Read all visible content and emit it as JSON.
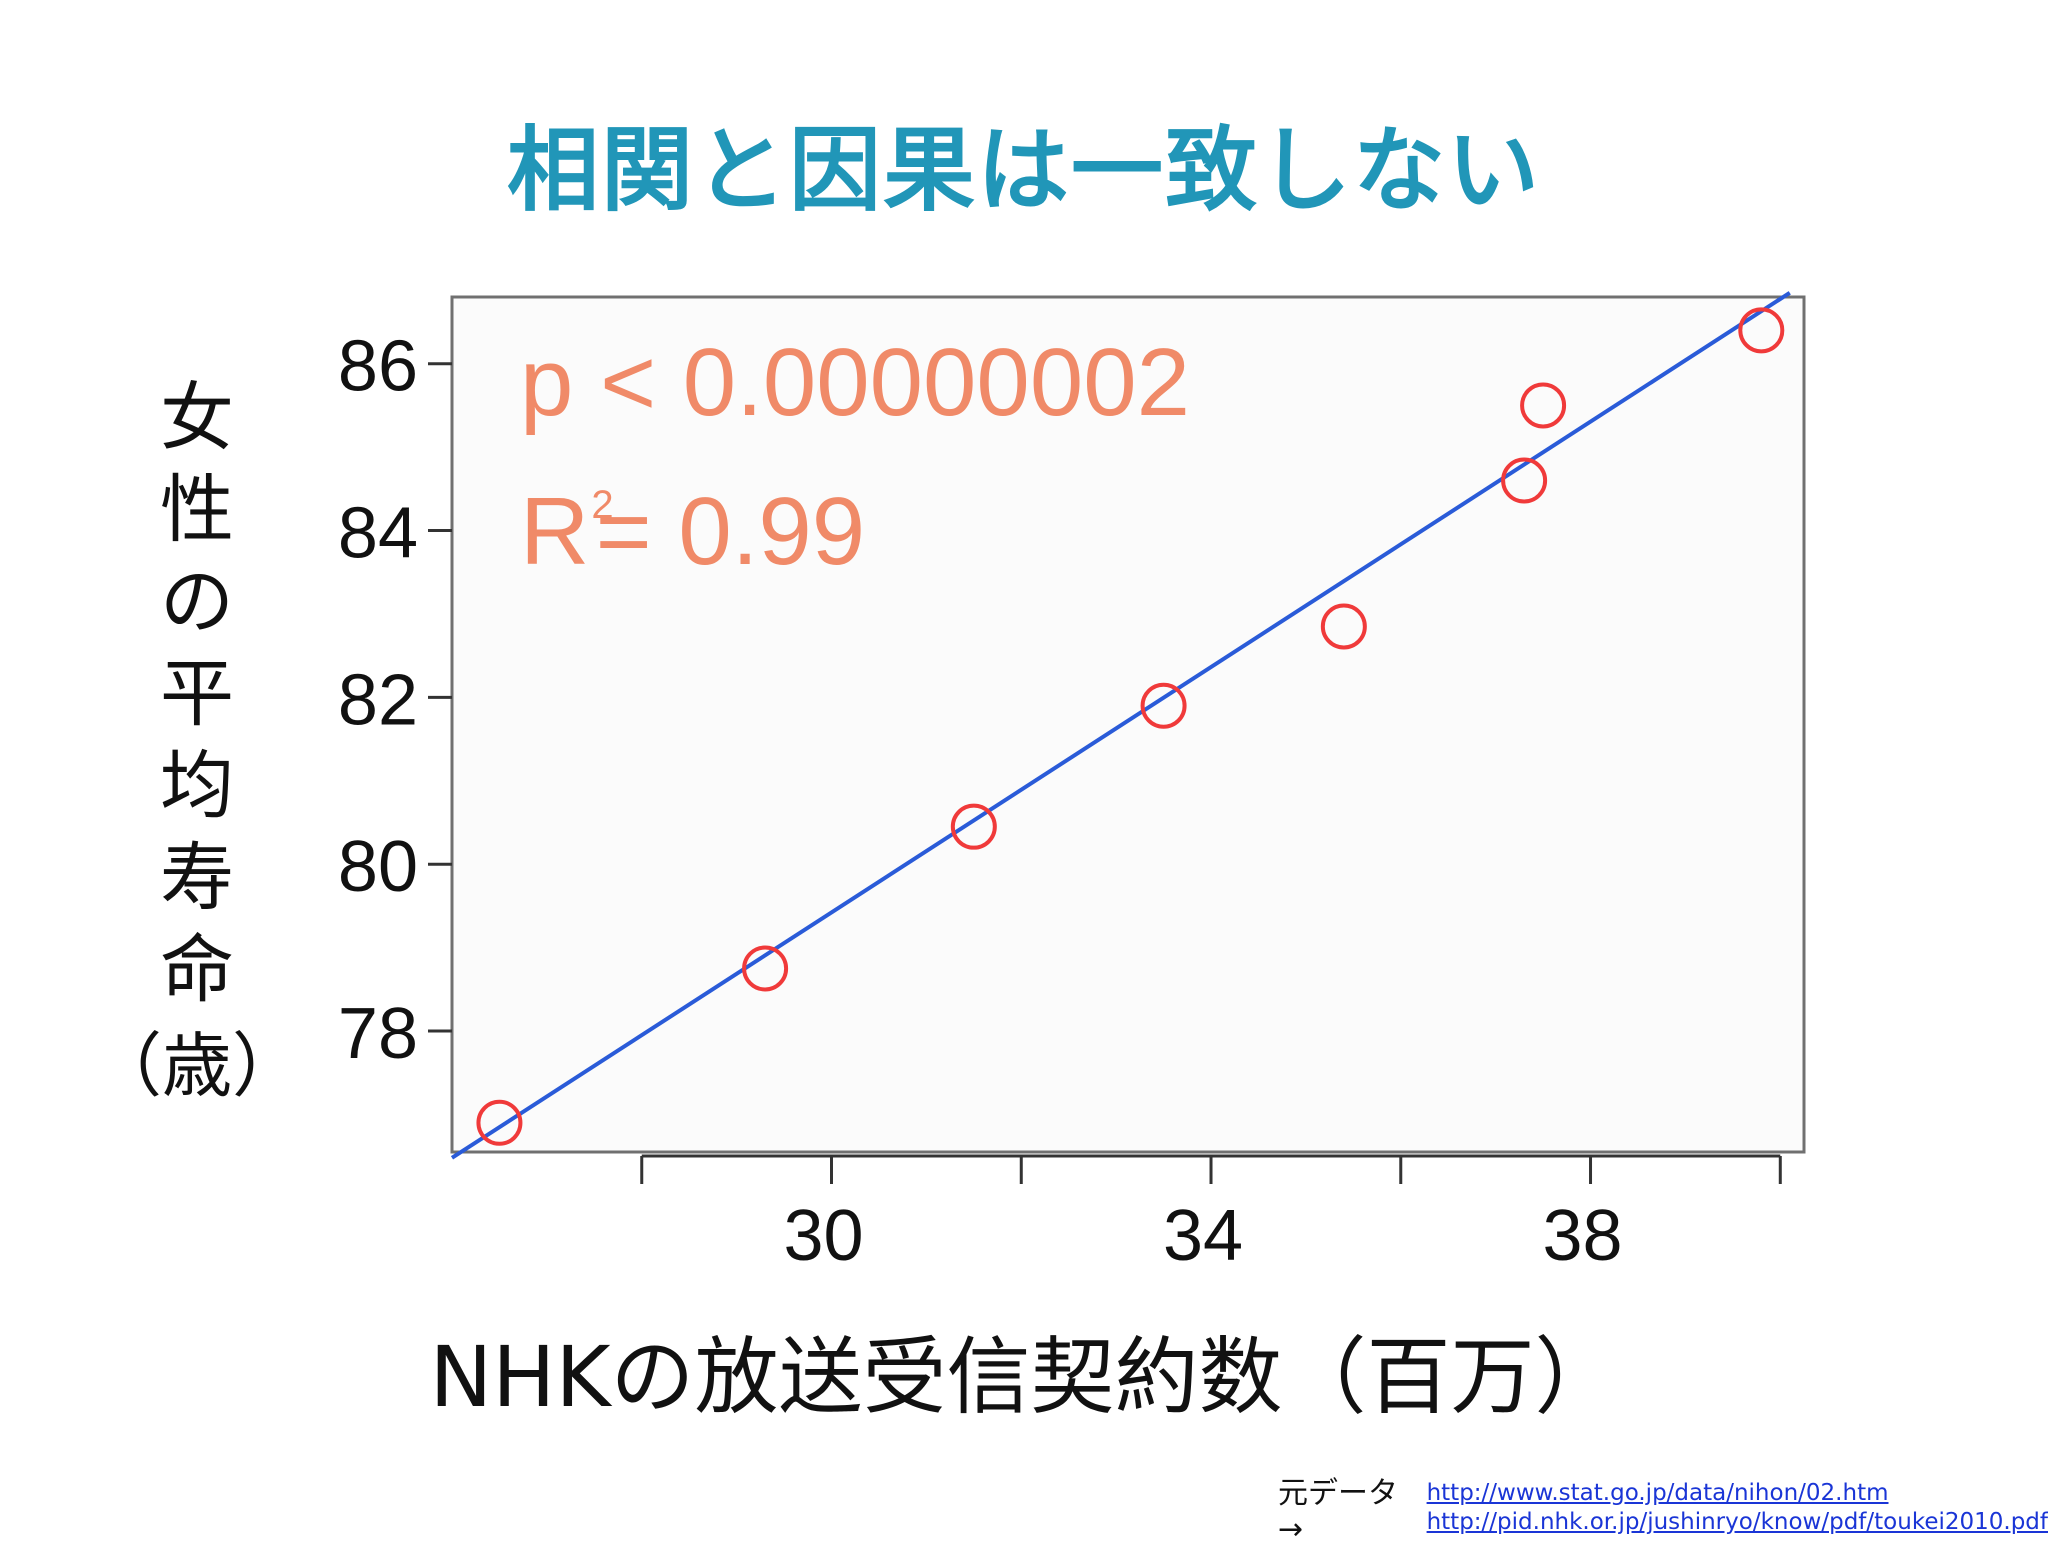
{
  "slide": {
    "title": "相関と因果は一致しない"
  },
  "chart_data": {
    "type": "scatter",
    "xlabel": "NHKの放送受信契約数（百万）",
    "ylabel_chars": [
      "女",
      "性",
      "の",
      "平",
      "均",
      "寿",
      "命"
    ],
    "ylabel_unit": "（歳）",
    "x_ticks": [
      28,
      30,
      32,
      34,
      36,
      38,
      40
    ],
    "x_tick_labels": [
      "30",
      "34",
      "38"
    ],
    "x_tick_label_values": [
      30,
      34,
      38
    ],
    "y_ticks": [
      78,
      80,
      82,
      84,
      86
    ],
    "y_tick_labels": [
      "78",
      "80",
      "82",
      "84",
      "86"
    ],
    "xlim": [
      26.0,
      40.25
    ],
    "ylim": [
      76.55,
      86.8
    ],
    "points": [
      {
        "x": 26.5,
        "y": 76.9
      },
      {
        "x": 29.3,
        "y": 78.75
      },
      {
        "x": 31.5,
        "y": 80.45
      },
      {
        "x": 33.5,
        "y": 81.9
      },
      {
        "x": 35.4,
        "y": 82.85
      },
      {
        "x": 37.3,
        "y": 84.6
      },
      {
        "x": 37.5,
        "y": 85.5
      },
      {
        "x": 39.8,
        "y": 86.4
      }
    ],
    "fit_line": {
      "x1": 26.0,
      "y1": 76.48,
      "x2": 40.1,
      "y2": 86.85
    },
    "point_color": "#f03a3a",
    "line_color": "#2a5bd8",
    "stats": {
      "p_text": "p < 0.00000002",
      "r_label": "R",
      "r_sup": "2",
      "r_value": "= 0.99"
    },
    "stats_color": "#f08a68"
  },
  "source": {
    "label": "元データ→",
    "links": [
      "http://www.stat.go.jp/data/nihon/02.htm",
      "http://pid.nhk.or.jp/jushinryo/know/pdf/toukei2010.pdf"
    ]
  }
}
